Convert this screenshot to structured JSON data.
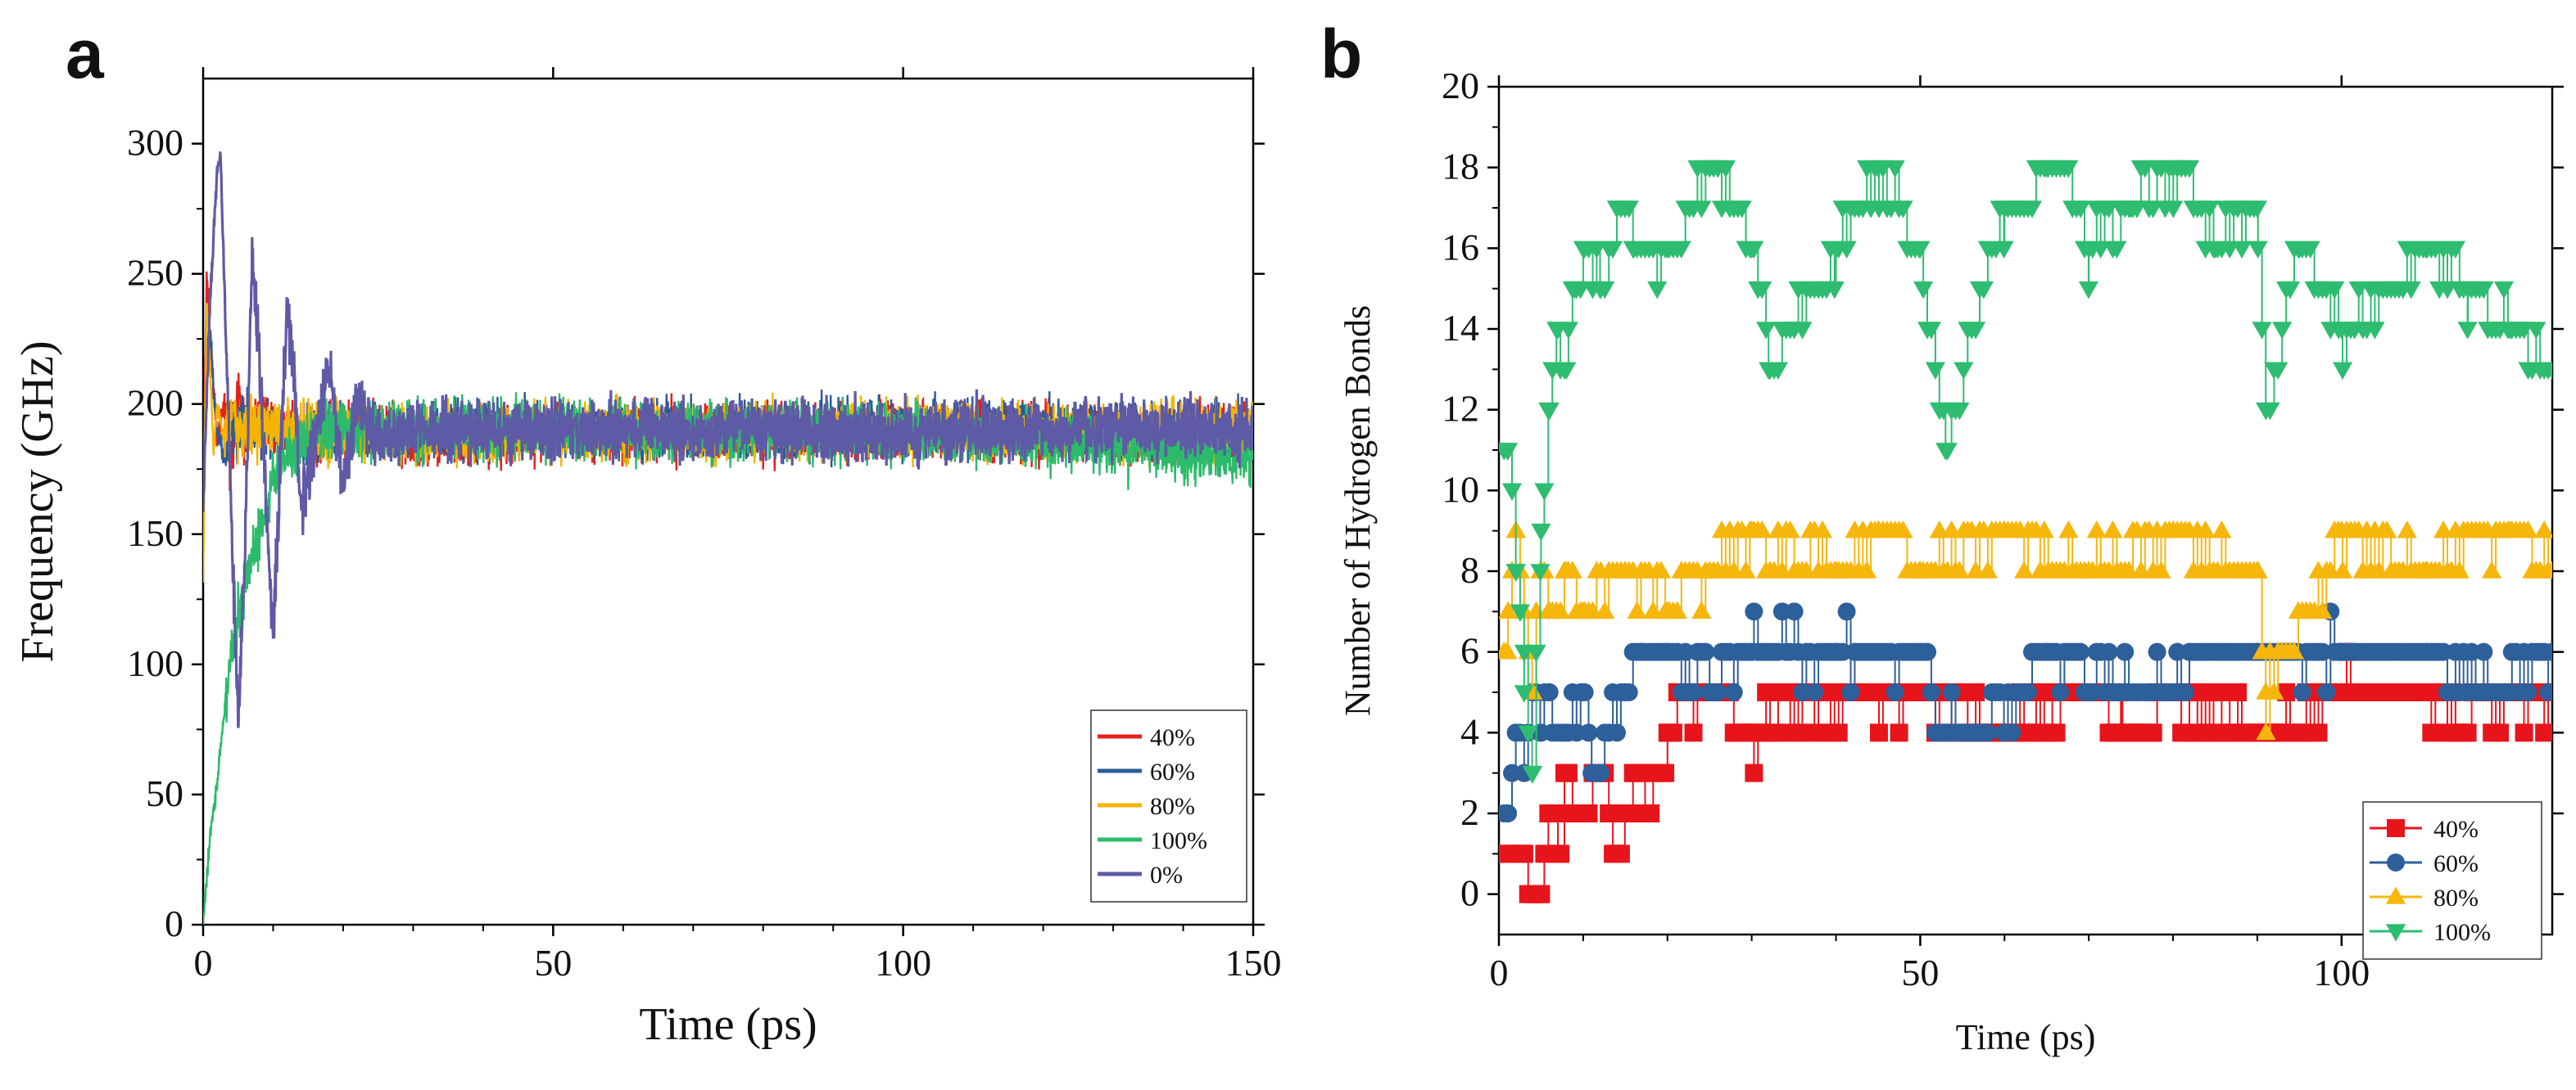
{
  "figure": {
    "panel_a_label": "a",
    "panel_b_label": "b"
  },
  "chart_data": [
    {
      "type": "line",
      "panel": "a",
      "xlabel": "Time (ps)",
      "ylabel": "Frequency (GHz)",
      "xlim": [
        0,
        150
      ],
      "ylim": [
        0,
        325
      ],
      "xticks": [
        0,
        50,
        100,
        150
      ],
      "yticks": [
        0,
        50,
        100,
        150,
        200,
        250,
        300
      ],
      "legend_position": "bottom-right",
      "grid": false,
      "series": [
        {
          "name": "40%",
          "color": "#e3211c",
          "x": [
            0,
            0.5,
            1,
            1.5,
            2,
            3,
            4,
            5,
            6,
            8,
            10,
            15,
            20,
            30,
            50,
            100,
            150
          ],
          "y": [
            160,
            252,
            225,
            205,
            185,
            200,
            175,
            205,
            185,
            195,
            190,
            188,
            190,
            188,
            190,
            189,
            189
          ]
        },
        {
          "name": "60%",
          "color": "#2b5c96",
          "x": [
            0,
            0.5,
            1,
            1.5,
            2,
            3,
            4,
            5,
            6,
            8,
            10,
            15,
            20,
            30,
            50,
            100,
            150
          ],
          "y": [
            170,
            220,
            230,
            205,
            190,
            180,
            195,
            188,
            192,
            190,
            191,
            189,
            190,
            189,
            190,
            190,
            190
          ]
        },
        {
          "name": "80%",
          "color": "#f5b400",
          "x": [
            0,
            0.5,
            1,
            1.5,
            2,
            3,
            4,
            5,
            6,
            8,
            10,
            15,
            20,
            30,
            50,
            100,
            150
          ],
          "y": [
            130,
            240,
            215,
            180,
            200,
            185,
            195,
            188,
            191,
            190,
            190,
            189,
            190,
            189,
            189,
            190,
            189
          ]
        },
        {
          "name": "100%",
          "color": "#2bbb6b",
          "x": [
            0,
            1,
            2,
            3,
            4,
            6,
            8,
            10,
            12,
            15,
            20,
            25,
            30,
            50,
            100,
            150
          ],
          "y": [
            0,
            35,
            55,
            80,
            105,
            130,
            150,
            170,
            182,
            188,
            190,
            189,
            190,
            190,
            189,
            180
          ]
        },
        {
          "name": "0%",
          "color": "#5f5aa6",
          "x": [
            0,
            1,
            2,
            2.5,
            3,
            4,
            5,
            6,
            7,
            8,
            9,
            10,
            11,
            12,
            13,
            14,
            16,
            18,
            20,
            22,
            25,
            30,
            50,
            100,
            150
          ],
          "y": [
            160,
            240,
            290,
            296,
            250,
            160,
            80,
            150,
            252,
            220,
            160,
            110,
            175,
            238,
            210,
            160,
            185,
            215,
            170,
            200,
            185,
            190,
            190,
            190,
            190
          ]
        }
      ]
    },
    {
      "type": "scatter",
      "panel": "b",
      "xlabel": "Time (ps)",
      "ylabel": "Number of Hydrogen Bonds",
      "xlim": [
        0,
        125
      ],
      "ylim": [
        -1,
        20
      ],
      "xticks": [
        0,
        50,
        100
      ],
      "yticks": [
        0,
        2,
        4,
        6,
        8,
        10,
        12,
        14,
        16,
        18,
        20
      ],
      "legend_position": "bottom-right",
      "grid": false,
      "series": [
        {
          "name": "40%",
          "color": "#e8141b",
          "marker": "square",
          "x": [
            3,
            4,
            5,
            6,
            7,
            8,
            9,
            10,
            12,
            14,
            16,
            18,
            20,
            25,
            30,
            40,
            50,
            60,
            70,
            74,
            80,
            93,
            100,
            110,
            114,
            120,
            125
          ],
          "y": [
            1,
            0,
            0,
            2,
            1,
            3,
            2,
            2,
            3,
            1,
            3,
            2,
            4,
            5,
            4,
            5,
            5,
            4,
            5,
            4,
            5,
            4,
            5,
            5,
            4,
            5,
            5
          ]
        },
        {
          "name": "60%",
          "color": "#2d5f9a",
          "marker": "circle",
          "x": [
            1,
            2,
            3,
            4,
            5,
            6,
            8,
            10,
            11,
            15,
            17,
            20,
            25,
            30,
            40,
            50,
            53,
            57,
            65,
            80,
            82,
            90,
            100,
            110,
            120,
            125
          ],
          "y": [
            2,
            4,
            3,
            5,
            4,
            5,
            4,
            5,
            3,
            5,
            6,
            6,
            5,
            6,
            6,
            6,
            4,
            4,
            6,
            5,
            6,
            6,
            6,
            6,
            5,
            6
          ]
        },
        {
          "name": "80%",
          "color": "#f6b60c",
          "marker": "triangle-up",
          "x": [
            1,
            2,
            3,
            4,
            5,
            6,
            8,
            10,
            15,
            20,
            25,
            30,
            40,
            45,
            50,
            60,
            70,
            80,
            90,
            91,
            100,
            110,
            120,
            125
          ],
          "y": [
            6,
            9,
            7,
            5,
            8,
            7,
            8,
            7,
            8,
            7,
            8,
            9,
            8,
            9,
            8,
            9,
            8,
            9,
            8,
            5,
            9,
            8,
            9,
            8
          ]
        },
        {
          "name": "100%",
          "color": "#2ebd70",
          "marker": "triangle-down",
          "x": [
            1,
            2,
            3,
            4,
            5,
            6,
            7,
            8,
            9,
            10,
            12,
            14,
            16,
            20,
            26,
            30,
            32,
            40,
            45,
            50,
            53,
            60,
            65,
            70,
            75,
            80,
            85,
            90,
            91,
            95,
            100,
            110,
            115,
            120,
            125
          ],
          "y": [
            11,
            8,
            6,
            3,
            9,
            12,
            14,
            13,
            15,
            16,
            15,
            17,
            16,
            16,
            18,
            16,
            13,
            16,
            18,
            16,
            11,
            17,
            18,
            16,
            17,
            18,
            16,
            17,
            12,
            16,
            14,
            16,
            15,
            14,
            13
          ]
        }
      ]
    }
  ]
}
